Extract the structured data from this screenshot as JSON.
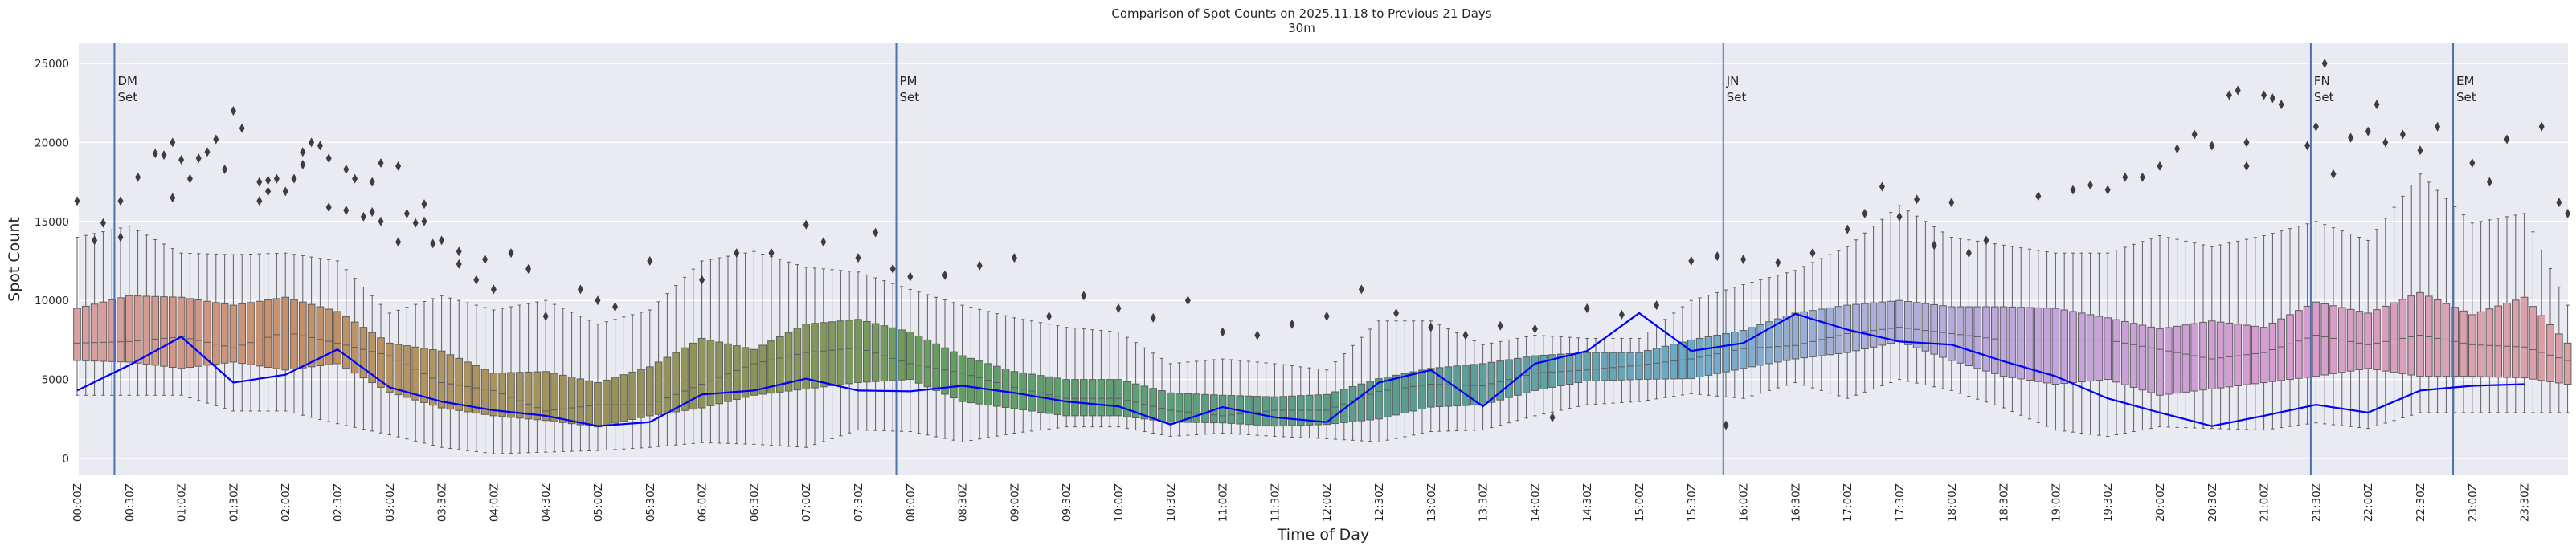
{
  "chart_data": {
    "type": "box",
    "title": "Comparison of Spot Counts on 2025.11.18 to Previous 21 Days",
    "subtitle": "30m",
    "xlabel": "Time of Day",
    "ylabel": "Spot Count",
    "ylim": [
      -1200,
      26000
    ],
    "yticks": [
      0,
      5000,
      10000,
      15000,
      20000,
      25000
    ],
    "grid": true,
    "bins_per_day": 288,
    "bin_minutes": 5,
    "xtick_labels": [
      "00:00Z",
      "00:30Z",
      "01:00Z",
      "01:30Z",
      "02:00Z",
      "02:30Z",
      "03:00Z",
      "03:30Z",
      "04:00Z",
      "04:30Z",
      "05:00Z",
      "05:30Z",
      "06:00Z",
      "06:30Z",
      "07:00Z",
      "07:30Z",
      "08:00Z",
      "08:30Z",
      "09:00Z",
      "09:30Z",
      "10:00Z",
      "10:30Z",
      "11:00Z",
      "11:30Z",
      "12:00Z",
      "12:30Z",
      "13:00Z",
      "13:30Z",
      "14:00Z",
      "14:30Z",
      "15:00Z",
      "15:30Z",
      "16:00Z",
      "16:30Z",
      "17:00Z",
      "17:30Z",
      "18:00Z",
      "18:30Z",
      "19:00Z",
      "19:30Z",
      "20:00Z",
      "20:30Z",
      "21:00Z",
      "21:30Z",
      "22:00Z",
      "22:30Z",
      "23:00Z",
      "23:30Z"
    ],
    "anchor_bin_index": [
      0,
      6,
      12,
      18,
      24,
      30,
      36,
      42,
      48,
      54,
      60,
      66,
      72,
      78,
      84,
      90,
      96,
      102,
      108,
      114,
      120,
      126,
      132,
      138,
      144,
      150,
      156,
      162,
      168,
      174,
      180,
      186,
      192,
      198,
      204,
      210,
      216,
      222,
      228,
      234,
      240,
      246,
      252,
      258,
      264,
      270,
      276,
      282,
      287
    ],
    "previous_21_days": {
      "q1": [
        6200,
        6100,
        5700,
        6100,
        5600,
        6000,
        4200,
        3200,
        2700,
        2400,
        2000,
        2700,
        3200,
        4000,
        4400,
        4800,
        5000,
        3600,
        3150,
        2700,
        2700,
        2300,
        2250,
        2050,
        2150,
        2500,
        3250,
        3400,
        4300,
        4900,
        5000,
        5050,
        5700,
        6300,
        6700,
        7400,
        6200,
        5200,
        4700,
        5000,
        4000,
        4400,
        4800,
        5200,
        5700,
        5200,
        5200,
        5100,
        4700
      ],
      "median": [
        7300,
        7400,
        7700,
        7000,
        8000,
        7300,
        6500,
        4800,
        4300,
        3000,
        3400,
        3400,
        4700,
        6000,
        6700,
        7000,
        6000,
        5400,
        4500,
        3800,
        3800,
        3050,
        2700,
        3050,
        3050,
        4250,
        4700,
        4600,
        5400,
        5600,
        5900,
        6300,
        6950,
        7150,
        7900,
        8300,
        7900,
        7500,
        7500,
        7500,
        6900,
        6300,
        6700,
        7800,
        7200,
        7800,
        7200,
        7050,
        6200
      ],
      "q3": [
        9500,
        10300,
        10200,
        9700,
        10200,
        9300,
        7300,
        6800,
        5400,
        5500,
        4800,
        5800,
        7600,
        6900,
        8500,
        8800,
        8000,
        6500,
        5500,
        5000,
        5000,
        4150,
        4000,
        3900,
        4050,
        5050,
        5700,
        6000,
        6500,
        6700,
        6700,
        7500,
        8100,
        9200,
        9700,
        10000,
        9600,
        9600,
        9500,
        8900,
        8200,
        8700,
        8300,
        9900,
        9200,
        10500,
        9100,
        10200,
        7300
      ],
      "whisker_low": [
        4000,
        4000,
        4000,
        3000,
        3000,
        2200,
        1500,
        700,
        300,
        400,
        500,
        700,
        1000,
        900,
        700,
        1800,
        1700,
        1050,
        1600,
        2000,
        2000,
        1400,
        1600,
        1400,
        1250,
        1050,
        1700,
        1800,
        2700,
        3400,
        3600,
        4100,
        3800,
        4800,
        3800,
        5000,
        4300,
        3200,
        1800,
        1400,
        2000,
        1900,
        1800,
        2250,
        1900,
        2900,
        2900,
        2900,
        2900
      ],
      "whisker_high": [
        14000,
        14700,
        13000,
        12900,
        13000,
        12500,
        9200,
        10300,
        9400,
        10000,
        8500,
        9400,
        12500,
        13100,
        12100,
        11800,
        10700,
        9700,
        8900,
        8300,
        8000,
        6000,
        6300,
        6000,
        5600,
        8700,
        8700,
        7200,
        7800,
        7600,
        7600,
        10000,
        11000,
        11900,
        13400,
        16000,
        14000,
        13500,
        13000,
        13000,
        14100,
        13400,
        14100,
        15000,
        13800,
        18000,
        14900,
        15500,
        9700
      ]
    },
    "current_day": {
      "name": "2025.11.18",
      "values": [
        4300,
        5900,
        7700,
        4800,
        5300,
        6900,
        4500,
        3600,
        3050,
        2700,
        2050,
        2300,
        4050,
        4300,
        5050,
        4300,
        4250,
        4600,
        4150,
        3600,
        3300,
        2150,
        3250,
        2600,
        2300,
        4800,
        5600,
        3300,
        6000,
        6800,
        9200,
        6800,
        7300,
        9150,
        8150,
        7400,
        7200,
        6150,
        5200,
        3800,
        2900,
        2050,
        2700,
        3400,
        2900,
        4300,
        4600,
        4700,
        null
      ],
      "color": "#0000ff"
    },
    "outliers": [
      [
        0,
        16300
      ],
      [
        2,
        13800
      ],
      [
        3,
        14900
      ],
      [
        5,
        16300
      ],
      [
        5,
        14000
      ],
      [
        7,
        17800
      ],
      [
        9,
        19300
      ],
      [
        10,
        19200
      ],
      [
        11,
        20000
      ],
      [
        11,
        16500
      ],
      [
        12,
        18900
      ],
      [
        13,
        17700
      ],
      [
        14,
        19000
      ],
      [
        15,
        19400
      ],
      [
        16,
        20200
      ],
      [
        17,
        18300
      ],
      [
        18,
        22000
      ],
      [
        19,
        20900
      ],
      [
        21,
        17500
      ],
      [
        21,
        16300
      ],
      [
        22,
        17600
      ],
      [
        22,
        16900
      ],
      [
        23,
        17700
      ],
      [
        24,
        16900
      ],
      [
        25,
        17700
      ],
      [
        26,
        19400
      ],
      [
        26,
        18600
      ],
      [
        27,
        20000
      ],
      [
        28,
        19800
      ],
      [
        29,
        19000
      ],
      [
        29,
        15900
      ],
      [
        31,
        18300
      ],
      [
        31,
        15700
      ],
      [
        32,
        17700
      ],
      [
        33,
        15300
      ],
      [
        34,
        17500
      ],
      [
        34,
        15600
      ],
      [
        35,
        18700
      ],
      [
        35,
        15000
      ],
      [
        37,
        18500
      ],
      [
        37,
        13700
      ],
      [
        38,
        15500
      ],
      [
        39,
        14900
      ],
      [
        40,
        16100
      ],
      [
        40,
        15000
      ],
      [
        41,
        13600
      ],
      [
        42,
        13800
      ],
      [
        44,
        13100
      ],
      [
        44,
        12300
      ],
      [
        46,
        11300
      ],
      [
        47,
        12600
      ],
      [
        48,
        10700
      ],
      [
        50,
        13000
      ],
      [
        52,
        12000
      ],
      [
        54,
        9000
      ],
      [
        58,
        10700
      ],
      [
        60,
        10000
      ],
      [
        62,
        9600
      ],
      [
        66,
        12500
      ],
      [
        72,
        11300
      ],
      [
        76,
        13000
      ],
      [
        80,
        13000
      ],
      [
        84,
        14800
      ],
      [
        86,
        13700
      ],
      [
        90,
        12700
      ],
      [
        92,
        14300
      ],
      [
        94,
        12000
      ],
      [
        96,
        11500
      ],
      [
        100,
        11600
      ],
      [
        104,
        12200
      ],
      [
        108,
        12700
      ],
      [
        112,
        9000
      ],
      [
        116,
        10300
      ],
      [
        120,
        9500
      ],
      [
        124,
        8900
      ],
      [
        128,
        10000
      ],
      [
        132,
        8000
      ],
      [
        136,
        7800
      ],
      [
        140,
        8500
      ],
      [
        144,
        9000
      ],
      [
        148,
        10700
      ],
      [
        152,
        9200
      ],
      [
        156,
        8300
      ],
      [
        160,
        7800
      ],
      [
        164,
        8400
      ],
      [
        168,
        8200
      ],
      [
        170,
        2600
      ],
      [
        174,
        9500
      ],
      [
        178,
        9100
      ],
      [
        182,
        9700
      ],
      [
        186,
        12500
      ],
      [
        189,
        12800
      ],
      [
        190,
        2100
      ],
      [
        192,
        12600
      ],
      [
        196,
        12400
      ],
      [
        200,
        13000
      ],
      [
        204,
        14500
      ],
      [
        206,
        15500
      ],
      [
        208,
        17200
      ],
      [
        210,
        15300
      ],
      [
        212,
        16400
      ],
      [
        214,
        13500
      ],
      [
        216,
        16200
      ],
      [
        218,
        13000
      ],
      [
        220,
        13800
      ],
      [
        226,
        16600
      ],
      [
        230,
        17000
      ],
      [
        232,
        17300
      ],
      [
        234,
        17000
      ],
      [
        236,
        17800
      ],
      [
        238,
        17800
      ],
      [
        240,
        18500
      ],
      [
        242,
        19600
      ],
      [
        244,
        20500
      ],
      [
        246,
        19800
      ],
      [
        248,
        23000
      ],
      [
        249,
        23300
      ],
      [
        250,
        20000
      ],
      [
        250,
        18500
      ],
      [
        252,
        23000
      ],
      [
        253,
        22800
      ],
      [
        254,
        22400
      ],
      [
        257,
        19800
      ],
      [
        258,
        21000
      ],
      [
        259,
        25000
      ],
      [
        260,
        18000
      ],
      [
        262,
        20300
      ],
      [
        264,
        20700
      ],
      [
        265,
        22400
      ],
      [
        266,
        20000
      ],
      [
        268,
        20500
      ],
      [
        270,
        19500
      ],
      [
        272,
        21000
      ],
      [
        276,
        18700
      ],
      [
        278,
        17500
      ],
      [
        280,
        20200
      ],
      [
        284,
        21000
      ],
      [
        286,
        16200
      ],
      [
        287,
        15500
      ]
    ],
    "events": [
      {
        "label1": "DM",
        "label2": "Set",
        "bin": 4.3
      },
      {
        "label1": "PM",
        "label2": "Set",
        "bin": 94.4
      },
      {
        "label1": "JN",
        "label2": "Set",
        "bin": 189.7
      },
      {
        "label1": "FN",
        "label2": "Set",
        "bin": 257.4
      },
      {
        "label1": "EM",
        "label2": "Set",
        "bin": 273.8
      }
    ],
    "event_color": "#4c72b0",
    "palette_hours": [
      0,
      2,
      3.5,
      5,
      7,
      8.5,
      11,
      13,
      15.5,
      17,
      19,
      21,
      23,
      24
    ],
    "palette_colors": [
      "#dba0a3",
      "#c8906a",
      "#b09460",
      "#9a9258",
      "#86965a",
      "#5fa060",
      "#5aa080",
      "#5a9c92",
      "#6aaac8",
      "#a8b0dc",
      "#c4a4dc",
      "#d89cd4",
      "#dca0b0",
      "#dba0a3"
    ],
    "background_color": "#eaeaf2"
  }
}
